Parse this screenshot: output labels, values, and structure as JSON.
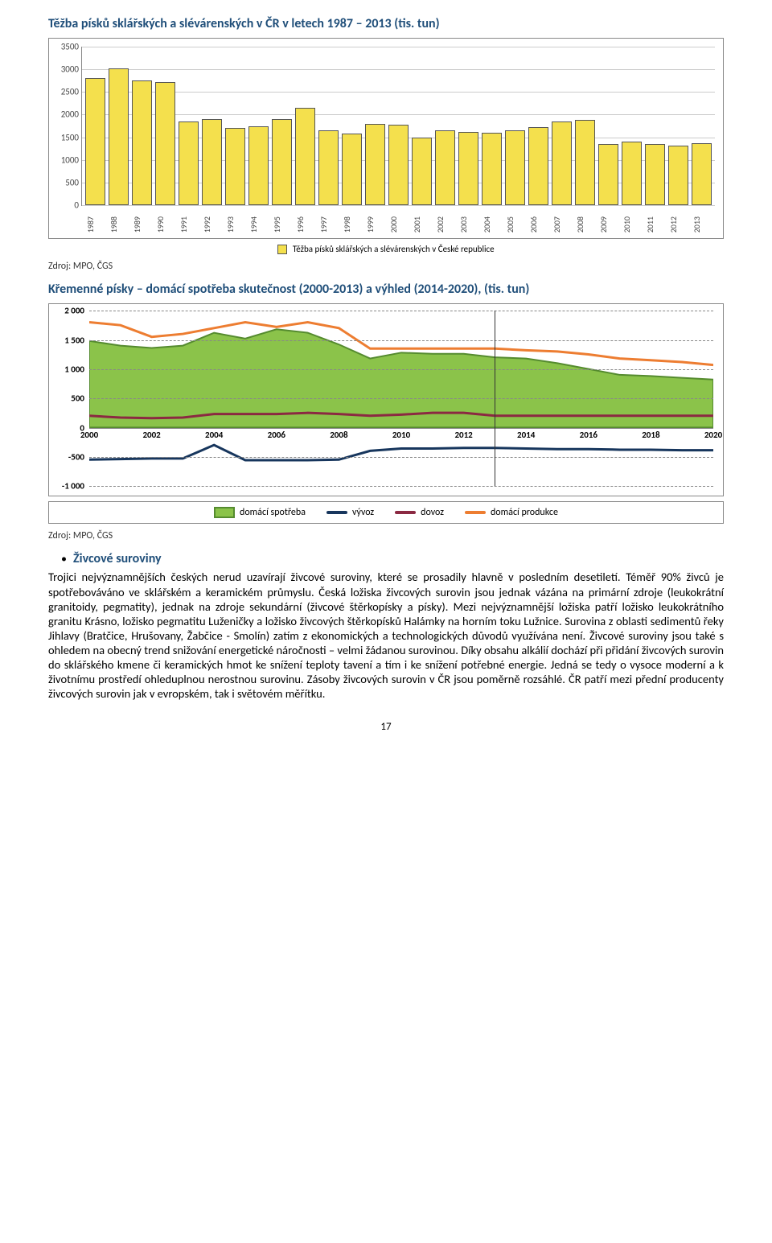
{
  "title1": "Těžba písků sklářských a slévárenských v ČR v letech 1987 – 2013 (tis. tun)",
  "source1": "Zdroj: MPO, ČGS",
  "chart1": {
    "type": "bar",
    "ymax": 3500,
    "ytick_step": 500,
    "yticks": [
      0,
      500,
      1000,
      1500,
      2000,
      2500,
      3000,
      3500
    ],
    "bar_fill": "#f4e04d",
    "bar_border": "#555555",
    "grid_color": "#cccccc",
    "years": [
      1987,
      1988,
      1989,
      1990,
      1991,
      1992,
      1993,
      1994,
      1995,
      1996,
      1997,
      1998,
      1999,
      2000,
      2001,
      2002,
      2003,
      2004,
      2005,
      2006,
      2007,
      2008,
      2009,
      2010,
      2011,
      2012,
      2013
    ],
    "values": [
      2800,
      3020,
      2750,
      2720,
      1850,
      1900,
      1700,
      1750,
      1900,
      2150,
      1650,
      1580,
      1800,
      1780,
      1500,
      1650,
      1620,
      1600,
      1650,
      1720,
      1850,
      1880,
      1350,
      1400,
      1350,
      1320,
      1370
    ],
    "legend": "Těžba písků sklářských a slévárenských v České republice"
  },
  "title2": "Křemenné písky – domácí spotřeba skutečnost (2000-2013) a výhled (2014-2020), (tis. tun)",
  "chart2": {
    "type": "area+line",
    "xmin": 2000,
    "xmax": 2020,
    "ymin": -1000,
    "ymax": 2000,
    "ytick_step": 500,
    "yticks": [
      -1000,
      -500,
      0,
      500,
      1000,
      1500,
      2000
    ],
    "xticks": [
      2000,
      2002,
      2004,
      2006,
      2008,
      2010,
      2012,
      2014,
      2016,
      2018,
      2020
    ],
    "split_year": 2013,
    "series": {
      "domaci_spotreba": {
        "label": "domácí spotřeba",
        "fill": "#8bc34a",
        "border": "#558b2f",
        "years": [
          2000,
          2001,
          2002,
          2003,
          2004,
          2005,
          2006,
          2007,
          2008,
          2009,
          2010,
          2011,
          2012,
          2013,
          2014,
          2015,
          2016,
          2017,
          2018,
          2019,
          2020
        ],
        "values": [
          1480,
          1400,
          1360,
          1400,
          1620,
          1520,
          1680,
          1620,
          1420,
          1180,
          1280,
          1260,
          1260,
          1200,
          1180,
          1100,
          1000,
          900,
          880,
          850,
          820
        ]
      },
      "vyvoz": {
        "label": "vývoz",
        "color": "#17365d",
        "width": 3,
        "years": [
          2000,
          2001,
          2002,
          2003,
          2004,
          2005,
          2006,
          2007,
          2008,
          2009,
          2010,
          2011,
          2012,
          2013,
          2014,
          2015,
          2016,
          2017,
          2018,
          2019,
          2020
        ],
        "values": [
          -550,
          -540,
          -530,
          -530,
          -300,
          -560,
          -560,
          -560,
          -550,
          -400,
          -360,
          -360,
          -350,
          -350,
          -360,
          -370,
          -370,
          -380,
          -380,
          -390,
          -390
        ]
      },
      "dovoz": {
        "label": "dovoz",
        "color": "#8b2942",
        "width": 3,
        "years": [
          2000,
          2001,
          2002,
          2003,
          2004,
          2005,
          2006,
          2007,
          2008,
          2009,
          2010,
          2011,
          2012,
          2013,
          2014,
          2015,
          2016,
          2017,
          2018,
          2019,
          2020
        ],
        "values": [
          200,
          170,
          160,
          170,
          230,
          230,
          230,
          250,
          230,
          200,
          220,
          250,
          250,
          200,
          200,
          200,
          200,
          200,
          200,
          200,
          200
        ]
      },
      "domaci_produkce": {
        "label": "domácí produkce",
        "color": "#ed7d31",
        "width": 3,
        "years": [
          2000,
          2001,
          2002,
          2003,
          2004,
          2005,
          2006,
          2007,
          2008,
          2009,
          2010,
          2011,
          2012,
          2013,
          2014,
          2015,
          2016,
          2017,
          2018,
          2019,
          2020
        ],
        "values": [
          1800,
          1750,
          1550,
          1600,
          1700,
          1800,
          1720,
          1800,
          1700,
          1350,
          1350,
          1350,
          1350,
          1350,
          1320,
          1300,
          1250,
          1180,
          1150,
          1120,
          1070
        ]
      }
    }
  },
  "source2": "Zdroj: MPO, ČGS",
  "section_heading": "Živcové suroviny",
  "paragraph": "Trojici nejvýznamnějších českých nerud uzavírají živcové suroviny, které se prosadily hlavně v posledním desetiletí. Téměř 90% živců je spotřebováváno ve sklářském a keramickém průmyslu. Česká ložiska živcových surovin jsou jednak vázána na primární zdroje (leukokrátní granitoidy, pegmatity), jednak na zdroje sekundární (živcové štěrkopísky a písky). Mezi nejvýznamnější ložiska patří ložisko leukokrátního granitu Krásno, ložisko pegmatitu Luženičky a ložisko živcových štěrkopísků Halámky na horním toku Lužnice. Surovina z oblasti sedimentů řeky Jihlavy (Bratčice, Hrušovany, Žabčice - Smolín) zatím z ekonomických a technologických důvodů využívána není. Živcové suroviny jsou také s ohledem na obecný trend snižování energetické náročnosti – velmi žádanou surovinou. Díky obsahu alkálií dochází při přidání živcových surovin do sklářského kmene či keramických hmot ke snížení teploty tavení a tím i ke snížení potřebné energie. Jedná se tedy o vysoce moderní a k životnímu prostředí ohleduplnou nerostnou surovinu. Zásoby živcových surovin v ČR jsou poměrně rozsáhlé. ČR patří mezi přední producenty živcových surovin jak v evropském, tak i světovém měřítku.",
  "page_number": "17"
}
